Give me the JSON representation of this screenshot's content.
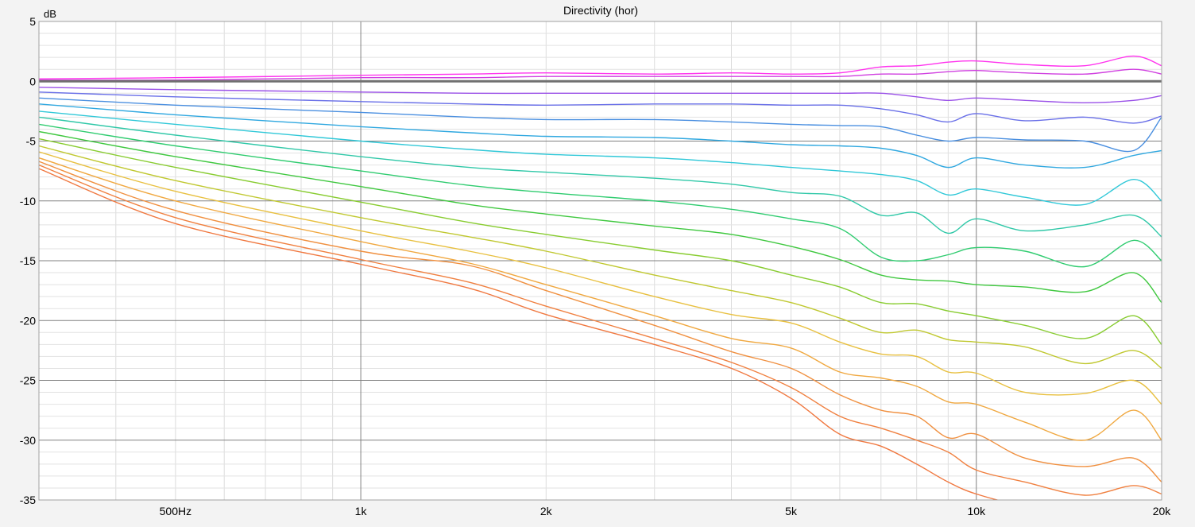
{
  "chart_data": {
    "type": "line",
    "title": "Directivity (hor)",
    "ylabel": "dB",
    "xlabel": "",
    "xscale": "log",
    "xlim": [
      300,
      20000
    ],
    "ylim": [
      -35,
      5
    ],
    "y_ticks": [
      5,
      0,
      -5,
      -10,
      -15,
      -20,
      -25,
      -30,
      -35
    ],
    "y_tick_labels": [
      "5",
      "0",
      "-5",
      "-10",
      "-15",
      "-20",
      "-25",
      "-30",
      "-35"
    ],
    "x_ticks": [
      500,
      1000,
      2000,
      5000,
      10000,
      20000
    ],
    "x_tick_labels": [
      "500Hz",
      "1k",
      "2k",
      "5k",
      "10k",
      "20k"
    ],
    "grid": true,
    "reference_line": 0,
    "x": [
      300,
      500,
      1000,
      1500,
      2000,
      3000,
      4000,
      5000,
      6000,
      7000,
      8000,
      9000,
      10000,
      12000,
      15000,
      18000,
      20000
    ],
    "series": [
      {
        "color": "#ff33ee",
        "values": [
          0.2,
          0.3,
          0.5,
          0.6,
          0.7,
          0.6,
          0.7,
          0.6,
          0.7,
          1.2,
          1.3,
          1.6,
          1.7,
          1.4,
          1.3,
          2.1,
          1.3
        ]
      },
      {
        "color": "#d040e0",
        "values": [
          0.1,
          0.1,
          0.3,
          0.3,
          0.4,
          0.4,
          0.4,
          0.4,
          0.4,
          0.6,
          0.6,
          0.8,
          0.9,
          0.7,
          0.6,
          1.0,
          0.6
        ]
      },
      {
        "color": "#9a50e8",
        "values": [
          -0.5,
          -0.7,
          -0.9,
          -1.0,
          -1.0,
          -1.0,
          -1.0,
          -1.0,
          -1.0,
          -1.0,
          -1.3,
          -1.6,
          -1.4,
          -1.6,
          -1.8,
          -1.6,
          -1.2
        ]
      },
      {
        "color": "#6a70e8",
        "values": [
          -0.9,
          -1.3,
          -1.7,
          -1.9,
          -2.0,
          -1.9,
          -1.9,
          -2.0,
          -2.0,
          -2.3,
          -2.8,
          -3.4,
          -2.7,
          -3.3,
          -3.0,
          -3.5,
          -2.9
        ]
      },
      {
        "color": "#4a8fe0",
        "values": [
          -1.4,
          -2.0,
          -2.6,
          -3.0,
          -3.2,
          -3.2,
          -3.4,
          -3.6,
          -3.7,
          -3.8,
          -4.5,
          -5.0,
          -4.7,
          -4.9,
          -5.0,
          -5.8,
          -3.0
        ]
      },
      {
        "color": "#30a8e0",
        "values": [
          -1.9,
          -2.8,
          -3.8,
          -4.3,
          -4.6,
          -4.7,
          -5.0,
          -5.3,
          -5.4,
          -5.6,
          -6.2,
          -7.2,
          -6.4,
          -7.0,
          -7.2,
          -6.2,
          -5.8
        ]
      },
      {
        "color": "#30c8d8",
        "values": [
          -2.5,
          -3.6,
          -5.0,
          -5.7,
          -6.1,
          -6.4,
          -6.8,
          -7.2,
          -7.5,
          -7.8,
          -8.3,
          -9.5,
          -9.0,
          -9.7,
          -10.3,
          -8.2,
          -10.0
        ]
      },
      {
        "color": "#30c8a8",
        "values": [
          -3.0,
          -4.5,
          -6.3,
          -7.2,
          -7.6,
          -8.1,
          -8.6,
          -9.3,
          -9.6,
          -11.2,
          -11.0,
          -12.7,
          -11.5,
          -12.5,
          -12.0,
          -11.2,
          -13.0
        ]
      },
      {
        "color": "#30cc70",
        "values": [
          -3.6,
          -5.4,
          -7.5,
          -8.7,
          -9.3,
          -10.0,
          -10.7,
          -11.5,
          -12.3,
          -14.7,
          -15.0,
          -14.5,
          -13.9,
          -14.2,
          -15.5,
          -13.3,
          -15.0
        ]
      },
      {
        "color": "#40c840",
        "values": [
          -4.2,
          -6.3,
          -8.8,
          -10.3,
          -11.1,
          -12.1,
          -12.8,
          -13.8,
          -14.9,
          -16.2,
          -16.6,
          -16.7,
          -17.0,
          -17.2,
          -17.6,
          -16.0,
          -18.5
        ]
      },
      {
        "color": "#88cc30",
        "values": [
          -4.8,
          -7.2,
          -10.1,
          -11.8,
          -12.8,
          -14.1,
          -15.0,
          -16.2,
          -17.2,
          -18.5,
          -18.6,
          -19.2,
          -19.6,
          -20.4,
          -21.5,
          -19.6,
          -22.0
        ]
      },
      {
        "color": "#c0c830",
        "values": [
          -5.4,
          -8.3,
          -11.4,
          -13.0,
          -14.2,
          -16.2,
          -17.5,
          -18.5,
          -19.8,
          -21.0,
          -20.8,
          -21.6,
          -21.8,
          -22.2,
          -23.6,
          -22.5,
          -24.0
        ]
      },
      {
        "color": "#e8c040",
        "values": [
          -5.9,
          -9.2,
          -12.5,
          -14.2,
          -15.6,
          -18.0,
          -19.5,
          -20.2,
          -21.8,
          -22.8,
          -23.0,
          -24.3,
          -24.4,
          -26.0,
          -26.1,
          -25.0,
          -27.0
        ]
      },
      {
        "color": "#f0a840",
        "values": [
          -6.4,
          -10.0,
          -13.4,
          -15.2,
          -17.0,
          -19.6,
          -21.5,
          -22.3,
          -24.3,
          -24.8,
          -25.5,
          -26.8,
          -27.0,
          -28.5,
          -30.0,
          -27.5,
          -30.0
        ]
      },
      {
        "color": "#f09040",
        "values": [
          -6.7,
          -10.8,
          -14.2,
          -15.4,
          -17.5,
          -20.4,
          -22.6,
          -24.0,
          -26.2,
          -27.5,
          -28.0,
          -29.8,
          -29.5,
          -31.5,
          -32.2,
          -31.5,
          -33.5
        ]
      },
      {
        "color": "#f08040",
        "values": [
          -7.0,
          -11.4,
          -14.9,
          -16.8,
          -18.8,
          -21.5,
          -23.5,
          -25.6,
          -28.0,
          -29.0,
          -30.0,
          -31.0,
          -32.5,
          -33.5,
          -34.6,
          -33.8,
          -34.5
        ]
      },
      {
        "color": "#f07840",
        "values": [
          -7.3,
          -11.9,
          -15.3,
          -17.3,
          -19.5,
          -22.0,
          -24.0,
          -26.5,
          -29.5,
          -30.5,
          -32.0,
          -33.5,
          -34.5,
          -35.5,
          -36.0,
          -35.5,
          -36.0
        ]
      }
    ]
  }
}
